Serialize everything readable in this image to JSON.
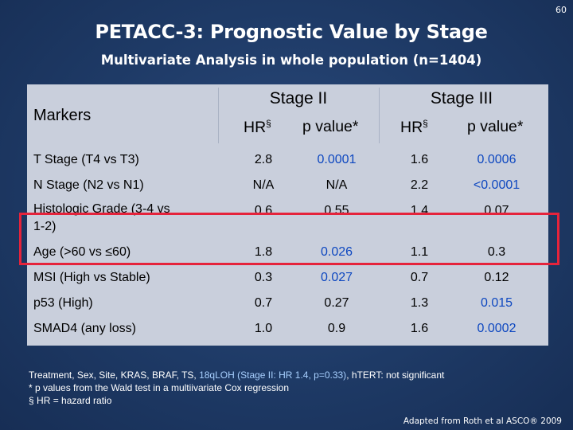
{
  "slide_number": "60",
  "title": "PETACC-3: Prognostic Value by Stage",
  "subtitle": "Multivariate Analysis in whole population (n=1404)",
  "table": {
    "markers_header": "Markers",
    "stage2_header": "Stage II",
    "stage3_header": "Stage III",
    "hr_header": "HR",
    "hr_mark": "§",
    "p_header": "p value*",
    "rows": [
      {
        "label": "T Stage (T4 vs T3)",
        "s2_hr": "2.8",
        "s2_p": "0.0001",
        "s3_hr": "1.6",
        "s3_p": "0.0006",
        "s2_sig": true,
        "s3_sig": true
      },
      {
        "label": "N Stage (N2 vs N1)",
        "s2_hr": "N/A",
        "s2_p": "N/A",
        "s3_hr": "2.2",
        "s3_p": "<0.0001",
        "s2_sig": false,
        "s3_sig": true
      },
      {
        "label": "Histologic Grade (3-4 vs\n1-2)",
        "s2_hr": "0.6",
        "s2_p": "0.55",
        "s3_hr": "1.4",
        "s3_p": "0.07",
        "s2_sig": false,
        "s3_sig": false
      },
      {
        "label": "Age (>60 vs ≤60)",
        "s2_hr": "1.8",
        "s2_p": "0.026",
        "s3_hr": "1.1",
        "s3_p": "0.3",
        "s2_sig": true,
        "s3_sig": false
      },
      {
        "label": "MSI (High vs Stable)",
        "s2_hr": "0.3",
        "s2_p": "0.027",
        "s3_hr": "0.7",
        "s3_p": "0.12",
        "s2_sig": true,
        "s3_sig": false
      },
      {
        "label": "p53 (High)",
        "s2_hr": "0.7",
        "s2_p": "0.27",
        "s3_hr": "1.3",
        "s3_p": "0.015",
        "s2_sig": false,
        "s3_sig": true
      },
      {
        "label": "SMAD4 (any loss)",
        "s2_hr": "1.0",
        "s2_p": "0.9",
        "s3_hr": "1.6",
        "s3_p": "0.0002",
        "s2_sig": false,
        "s3_sig": true
      }
    ]
  },
  "footnotes": {
    "line1_start": "Treatment, Sex, Site, KRAS, BRAF, TS, ",
    "line1_highlight": "18qLOH (Stage II: HR 1.4, p=0.33)",
    "line1_end": ", hTERT: not significant",
    "line2": "*  p values from the Wald test in a multiivariate Cox regression",
    "line3_mark": "§",
    "line3": " HR = hazard ratio"
  },
  "credit": "Adapted from Roth et al ASCO® 2009",
  "colors": {
    "background": "#1f3864",
    "table": "#c9cfdc",
    "significant": "#0d47c0",
    "highlight_box": "#e5233b"
  }
}
